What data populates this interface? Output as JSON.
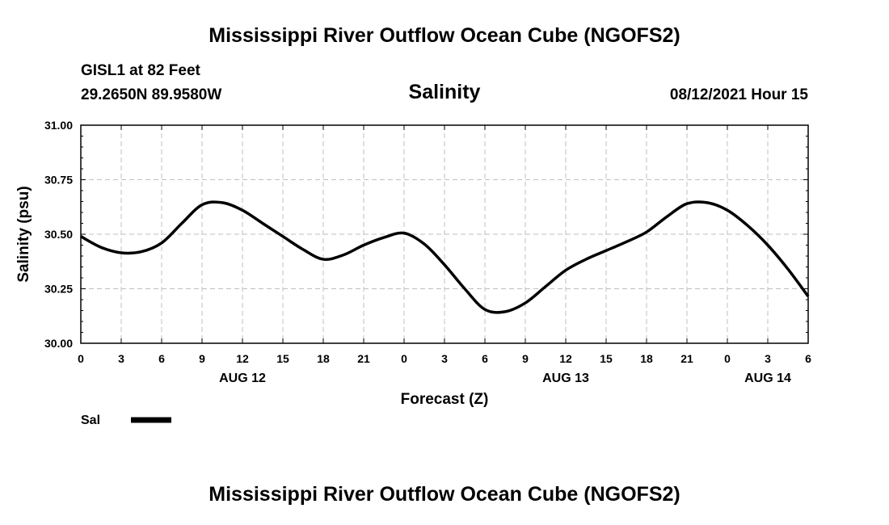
{
  "header": {
    "title": "Mississippi River Outflow Ocean Cube (NGOFS2)",
    "station": "GISL1 at 82 Feet",
    "coords": "29.2650N  89.9580W",
    "subtitle": "Salinity",
    "datetime": "08/12/2021 Hour 15"
  },
  "footer": {
    "title": "Mississippi River Outflow Ocean Cube (NGOFS2)"
  },
  "colors": {
    "line": "#000000",
    "grid": "#bfbfbf",
    "axis": "#000000"
  },
  "chart_data": {
    "type": "line",
    "title": "Salinity",
    "xlabel": "Forecast (Z)",
    "ylabel": "Salinity (psu)",
    "ylim": [
      30.0,
      31.0
    ],
    "xlim": [
      0,
      54
    ],
    "grid": true,
    "x_unit": "hours from 08/12/2021 00Z",
    "y_ticks": [
      "30.00",
      "30.25",
      "30.50",
      "30.75",
      "31.00"
    ],
    "y_tick_values": [
      30.0,
      30.25,
      30.5,
      30.75,
      31.0
    ],
    "x_ticks": [
      "0",
      "3",
      "6",
      "9",
      "12",
      "15",
      "18",
      "21",
      "0",
      "3",
      "6",
      "9",
      "12",
      "15",
      "18",
      "21",
      "0",
      "3",
      "6"
    ],
    "date_labels": [
      {
        "text": "AUG 12",
        "x": 12
      },
      {
        "text": "AUG 13",
        "x": 36
      },
      {
        "text": "AUG 14",
        "x": 51
      }
    ],
    "legend": {
      "label": "Sal",
      "placement": "bottom-left"
    },
    "series": [
      {
        "name": "Sal",
        "x": [
          0,
          1.5,
          3,
          4.5,
          6,
          7.5,
          9,
          10.5,
          12,
          13.5,
          15,
          16.5,
          18,
          19.5,
          21,
          22.5,
          24,
          25.5,
          27,
          28.5,
          30,
          31.5,
          33,
          34.5,
          36,
          37.5,
          39,
          40.5,
          42,
          43.5,
          45,
          46.5,
          48,
          49.5,
          51,
          52.5,
          54
        ],
        "values": [
          30.49,
          30.44,
          30.415,
          30.42,
          30.46,
          30.55,
          30.635,
          30.645,
          30.61,
          30.55,
          30.49,
          30.43,
          30.385,
          30.405,
          30.45,
          30.485,
          30.505,
          30.455,
          30.36,
          30.25,
          30.155,
          30.145,
          30.185,
          30.26,
          30.335,
          30.385,
          30.425,
          30.465,
          30.51,
          30.58,
          30.64,
          30.645,
          30.61,
          30.54,
          30.45,
          30.34,
          30.215
        ]
      }
    ]
  }
}
